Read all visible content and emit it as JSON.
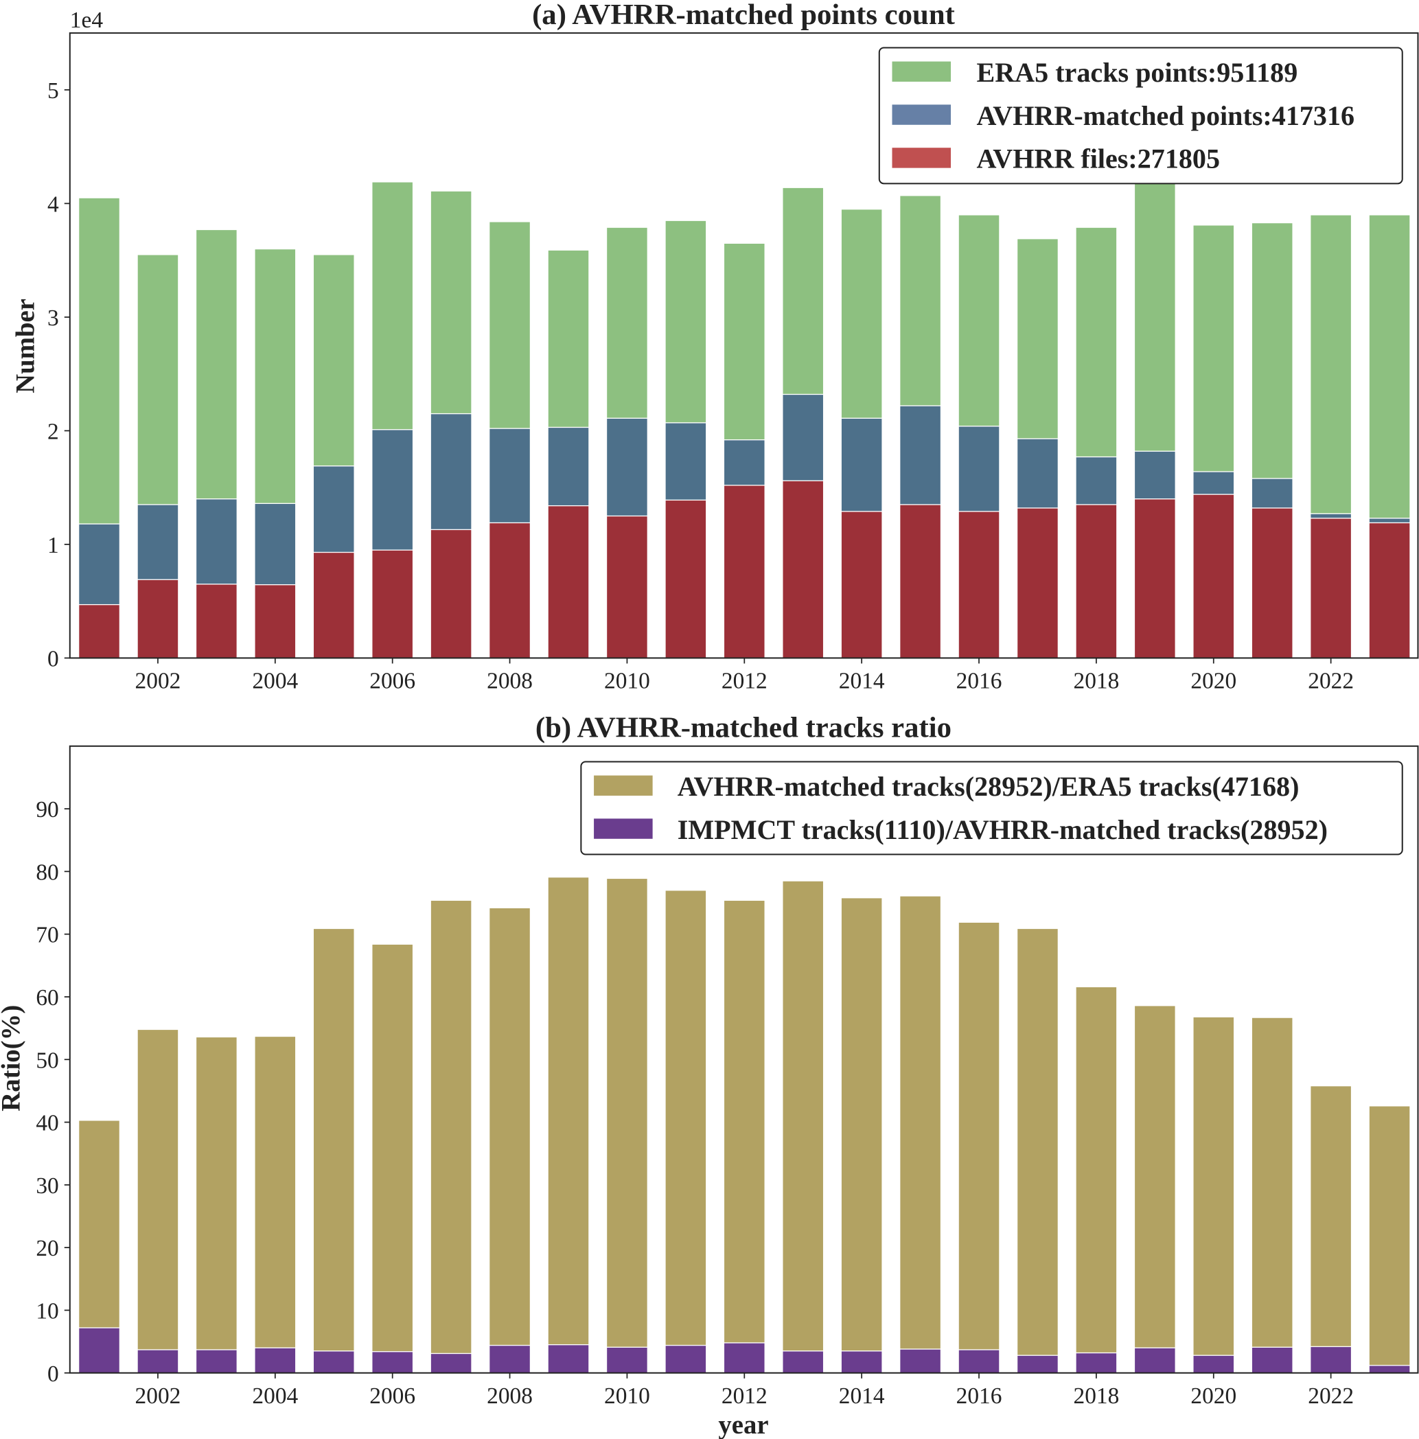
{
  "chart_data": [
    {
      "type": "bar",
      "title": "(a) AVHRR-matched points count",
      "xlabel": "",
      "ylabel": "Number",
      "y_offset_label": "1e4",
      "x": [
        2001,
        2002,
        2003,
        2004,
        2005,
        2006,
        2007,
        2008,
        2009,
        2010,
        2011,
        2012,
        2013,
        2014,
        2015,
        2016,
        2017,
        2018,
        2019,
        2020,
        2021,
        2022,
        2023
      ],
      "xlim": [
        2000.5,
        2023.5
      ],
      "ylim": [
        0,
        5.5
      ],
      "y_unit_multiplier": 10000,
      "xticks": [
        2002,
        2004,
        2006,
        2008,
        2010,
        2012,
        2014,
        2016,
        2018,
        2020,
        2022
      ],
      "yticks": [
        0,
        1,
        2,
        3,
        4,
        5
      ],
      "legend_position": "top-right",
      "series": [
        {
          "name": "ERA5 tracks points:951189",
          "color": "#8dc080",
          "legend_color": "#8dc080",
          "values": [
            4.05,
            3.55,
            3.77,
            3.6,
            3.55,
            4.19,
            4.11,
            3.84,
            3.59,
            3.79,
            3.85,
            3.65,
            4.14,
            3.95,
            4.07,
            3.9,
            3.69,
            3.79,
            4.2,
            3.81,
            3.83,
            3.9,
            3.9
          ]
        },
        {
          "name": "AVHRR-matched points:417316",
          "color": "#4d708a",
          "legend_color": "#6680a6",
          "values": [
            1.18,
            1.35,
            1.4,
            1.36,
            1.69,
            2.01,
            2.15,
            2.02,
            2.03,
            2.11,
            2.07,
            1.92,
            2.32,
            2.11,
            2.22,
            2.04,
            1.93,
            1.77,
            1.82,
            1.64,
            1.58,
            1.27,
            1.23
          ]
        },
        {
          "name": "AVHRR files:271805",
          "color": "#9c3038",
          "legend_color": "#c05050",
          "values": [
            0.47,
            0.69,
            0.65,
            0.645,
            0.93,
            0.95,
            1.13,
            1.19,
            1.34,
            1.25,
            1.39,
            1.52,
            1.56,
            1.29,
            1.35,
            1.29,
            1.32,
            1.35,
            1.4,
            1.44,
            1.32,
            1.23,
            1.19
          ]
        }
      ]
    },
    {
      "type": "bar",
      "title": "(b) AVHRR-matched tracks ratio",
      "xlabel": "year",
      "ylabel": "Ratio(%)",
      "x": [
        2001,
        2002,
        2003,
        2004,
        2005,
        2006,
        2007,
        2008,
        2009,
        2010,
        2011,
        2012,
        2013,
        2014,
        2015,
        2016,
        2017,
        2018,
        2019,
        2020,
        2021,
        2022,
        2023
      ],
      "xlim": [
        2000.5,
        2023.5
      ],
      "ylim": [
        0,
        100
      ],
      "xticks": [
        2002,
        2004,
        2006,
        2008,
        2010,
        2012,
        2014,
        2016,
        2018,
        2020,
        2022
      ],
      "yticks": [
        0,
        10,
        20,
        30,
        40,
        50,
        60,
        70,
        80,
        90
      ],
      "legend_position": "top-right",
      "series": [
        {
          "name": "AVHRR-matched tracks(28952)/ERA5 tracks(47168)",
          "color": "#b2a262",
          "legend_color": "#b2a262",
          "values": [
            40.3,
            54.8,
            53.6,
            53.7,
            70.9,
            68.4,
            75.4,
            74.2,
            79.1,
            78.9,
            77.0,
            75.4,
            78.5,
            75.8,
            76.1,
            71.9,
            70.9,
            61.6,
            58.6,
            56.8,
            56.7,
            45.8,
            42.6
          ]
        },
        {
          "name": "IMPMCT tracks(1110)/AVHRR-matched tracks(28952)",
          "color": "#6a3d8e",
          "legend_color": "#6a3d8e",
          "values": [
            7.2,
            3.7,
            3.7,
            4.0,
            3.5,
            3.4,
            3.1,
            4.4,
            4.5,
            4.1,
            4.4,
            4.8,
            3.5,
            3.5,
            3.8,
            3.7,
            2.8,
            3.2,
            4.0,
            2.8,
            4.1,
            4.2,
            1.2
          ]
        }
      ]
    }
  ]
}
